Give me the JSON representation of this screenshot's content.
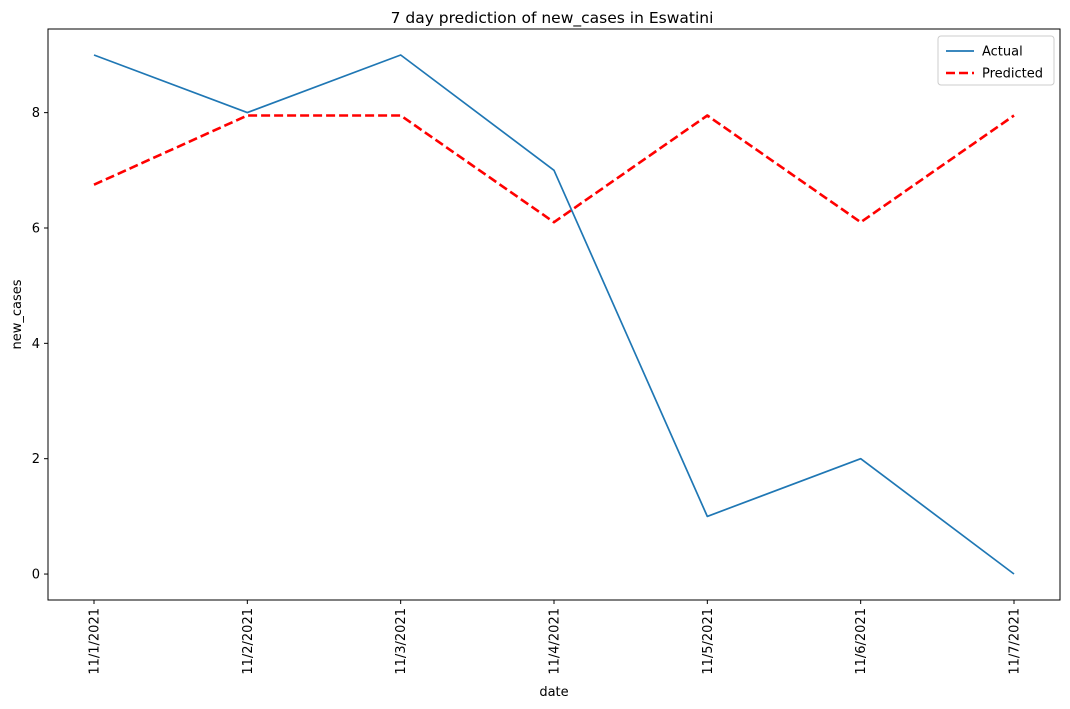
{
  "chart_data": {
    "type": "line",
    "title": "7 day prediction of new_cases in Eswatini",
    "xlabel": "date",
    "ylabel": "new_cases",
    "categories": [
      "11/1/2021",
      "11/2/2021",
      "11/3/2021",
      "11/4/2021",
      "11/5/2021",
      "11/6/2021",
      "11/7/2021"
    ],
    "y_ticks": [
      0,
      2,
      4,
      6,
      8
    ],
    "ylim": [
      -0.45,
      9.45
    ],
    "grid": false,
    "legend_position": "top-right",
    "series": [
      {
        "name": "Actual",
        "values": [
          9,
          8,
          9,
          7,
          1,
          2,
          0
        ],
        "color": "#1f77b4",
        "style": "solid"
      },
      {
        "name": "Predicted",
        "values": [
          6.75,
          7.95,
          7.95,
          6.1,
          7.95,
          6.1,
          7.95
        ],
        "color": "#ff0000",
        "style": "dashed"
      }
    ]
  }
}
